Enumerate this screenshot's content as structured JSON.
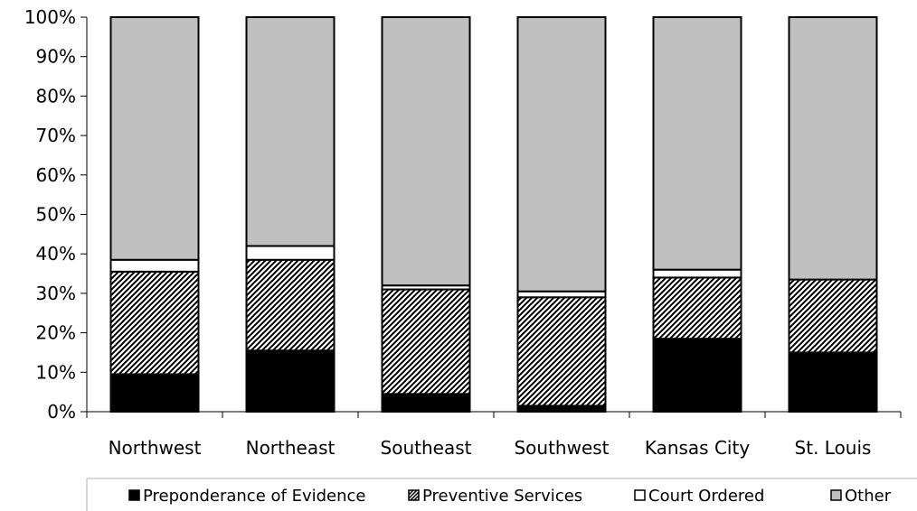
{
  "chart_data": {
    "type": "bar",
    "stacked": true,
    "percent": true,
    "categories": [
      "Northwest",
      "Northeast",
      "Southeast",
      "Southwest",
      "Kansas City",
      "St. Louis"
    ],
    "series": [
      {
        "name": "Preponderance of Evidence",
        "values": [
          9.5,
          15.5,
          4.5,
          1.5,
          18.5,
          15
        ],
        "color": "#000000",
        "pattern": "solid"
      },
      {
        "name": "Preventive Services",
        "values": [
          26,
          23,
          26.5,
          27.5,
          15.5,
          18.5
        ],
        "color": "#000000",
        "pattern": "diagonal-hatch"
      },
      {
        "name": "Court Ordered",
        "values": [
          3,
          3.5,
          1,
          1.5,
          2,
          0
        ],
        "color": "#ffffff",
        "pattern": "solid"
      },
      {
        "name": "Other",
        "values": [
          61.5,
          58,
          68,
          69.5,
          64,
          66.5
        ],
        "color": "#c0c0c0",
        "pattern": "solid"
      }
    ],
    "yticks": [
      "0%",
      "10%",
      "20%",
      "30%",
      "40%",
      "50%",
      "60%",
      "70%",
      "80%",
      "90%",
      "100%"
    ],
    "ylim": [
      0,
      100
    ],
    "grid": false,
    "legend_position": "bottom",
    "title": "",
    "xlabel": "",
    "ylabel": ""
  }
}
